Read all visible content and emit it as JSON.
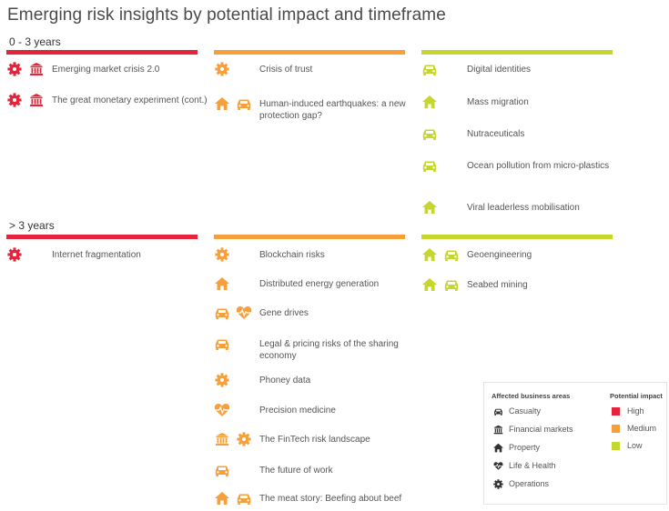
{
  "title": "Emerging risk insights by potential impact and timeframe",
  "colors": {
    "high": "#e5243b",
    "medium": "#f7a03b",
    "low": "#c5d62e"
  },
  "chart_data": {
    "type": "table",
    "sections": [
      {
        "label": "0 - 3 years",
        "columns": [
          {
            "impact": "high",
            "items": [
              {
                "icons": [
                  "operations-icon",
                  "financial-markets-icon"
                ],
                "label": "Emerging market crisis 2.0"
              },
              {
                "icons": [
                  "operations-icon",
                  "financial-markets-icon"
                ],
                "label": "The great monetary experiment (cont.)"
              }
            ]
          },
          {
            "impact": "medium",
            "items": [
              {
                "icons": [
                  "operations-icon"
                ],
                "label": "Crisis of trust"
              },
              {
                "icons": [
                  "property-icon",
                  "casualty-icon"
                ],
                "label": "Human-induced earthquakes: a new protection gap?"
              }
            ]
          },
          {
            "impact": "low",
            "items": [
              {
                "icons": [
                  "casualty-icon"
                ],
                "label": "Digital identities"
              },
              {
                "icons": [
                  "property-icon"
                ],
                "label": "Mass migration"
              },
              {
                "icons": [
                  "casualty-icon"
                ],
                "label": "Nutraceuticals"
              },
              {
                "icons": [
                  "casualty-icon"
                ],
                "label": "Ocean pollution from micro-plastics"
              },
              {
                "icons": [
                  "property-icon"
                ],
                "label": "Viral leaderless mobilisation"
              }
            ]
          }
        ]
      },
      {
        "label": "> 3 years",
        "columns": [
          {
            "impact": "high",
            "items": [
              {
                "icons": [
                  "operations-icon"
                ],
                "label": "Internet fragmentation"
              }
            ]
          },
          {
            "impact": "medium",
            "items": [
              {
                "icons": [
                  "operations-icon"
                ],
                "label": "Blockchain risks"
              },
              {
                "icons": [
                  "property-icon"
                ],
                "label": "Distributed energy generation"
              },
              {
                "icons": [
                  "casualty-icon",
                  "life-health-icon"
                ],
                "label": "Gene drives"
              },
              {
                "icons": [
                  "casualty-icon"
                ],
                "label": "Legal & pricing risks of the sharing economy"
              },
              {
                "icons": [
                  "operations-icon"
                ],
                "label": "Phoney data"
              },
              {
                "icons": [
                  "life-health-icon"
                ],
                "label": "Precision medicine"
              },
              {
                "icons": [
                  "financial-markets-icon",
                  "operations-icon"
                ],
                "label": "The FinTech risk landscape"
              },
              {
                "icons": [
                  "casualty-icon"
                ],
                "label": "The future of work"
              },
              {
                "icons": [
                  "property-icon",
                  "casualty-icon"
                ],
                "label": "The meat story: Beefing about beef"
              }
            ]
          },
          {
            "impact": "low",
            "items": [
              {
                "icons": [
                  "property-icon",
                  "casualty-icon"
                ],
                "label": "Geoengineering"
              },
              {
                "icons": [
                  "property-icon",
                  "casualty-icon"
                ],
                "label": "Seabed mining"
              }
            ]
          }
        ]
      }
    ]
  },
  "legend": {
    "areas_title": "Affected business areas",
    "areas": [
      {
        "icon": "casualty-icon",
        "label": "Casualty"
      },
      {
        "icon": "financial-markets-icon",
        "label": "Financial markets"
      },
      {
        "icon": "property-icon",
        "label": "Property"
      },
      {
        "icon": "life-health-icon",
        "label": "Life & Health"
      },
      {
        "icon": "operations-icon",
        "label": "Operations"
      }
    ],
    "impact_title": "Potential impact",
    "impacts": [
      {
        "impact": "high",
        "label": "High"
      },
      {
        "impact": "medium",
        "label": "Medium"
      },
      {
        "impact": "low",
        "label": "Low"
      }
    ]
  }
}
